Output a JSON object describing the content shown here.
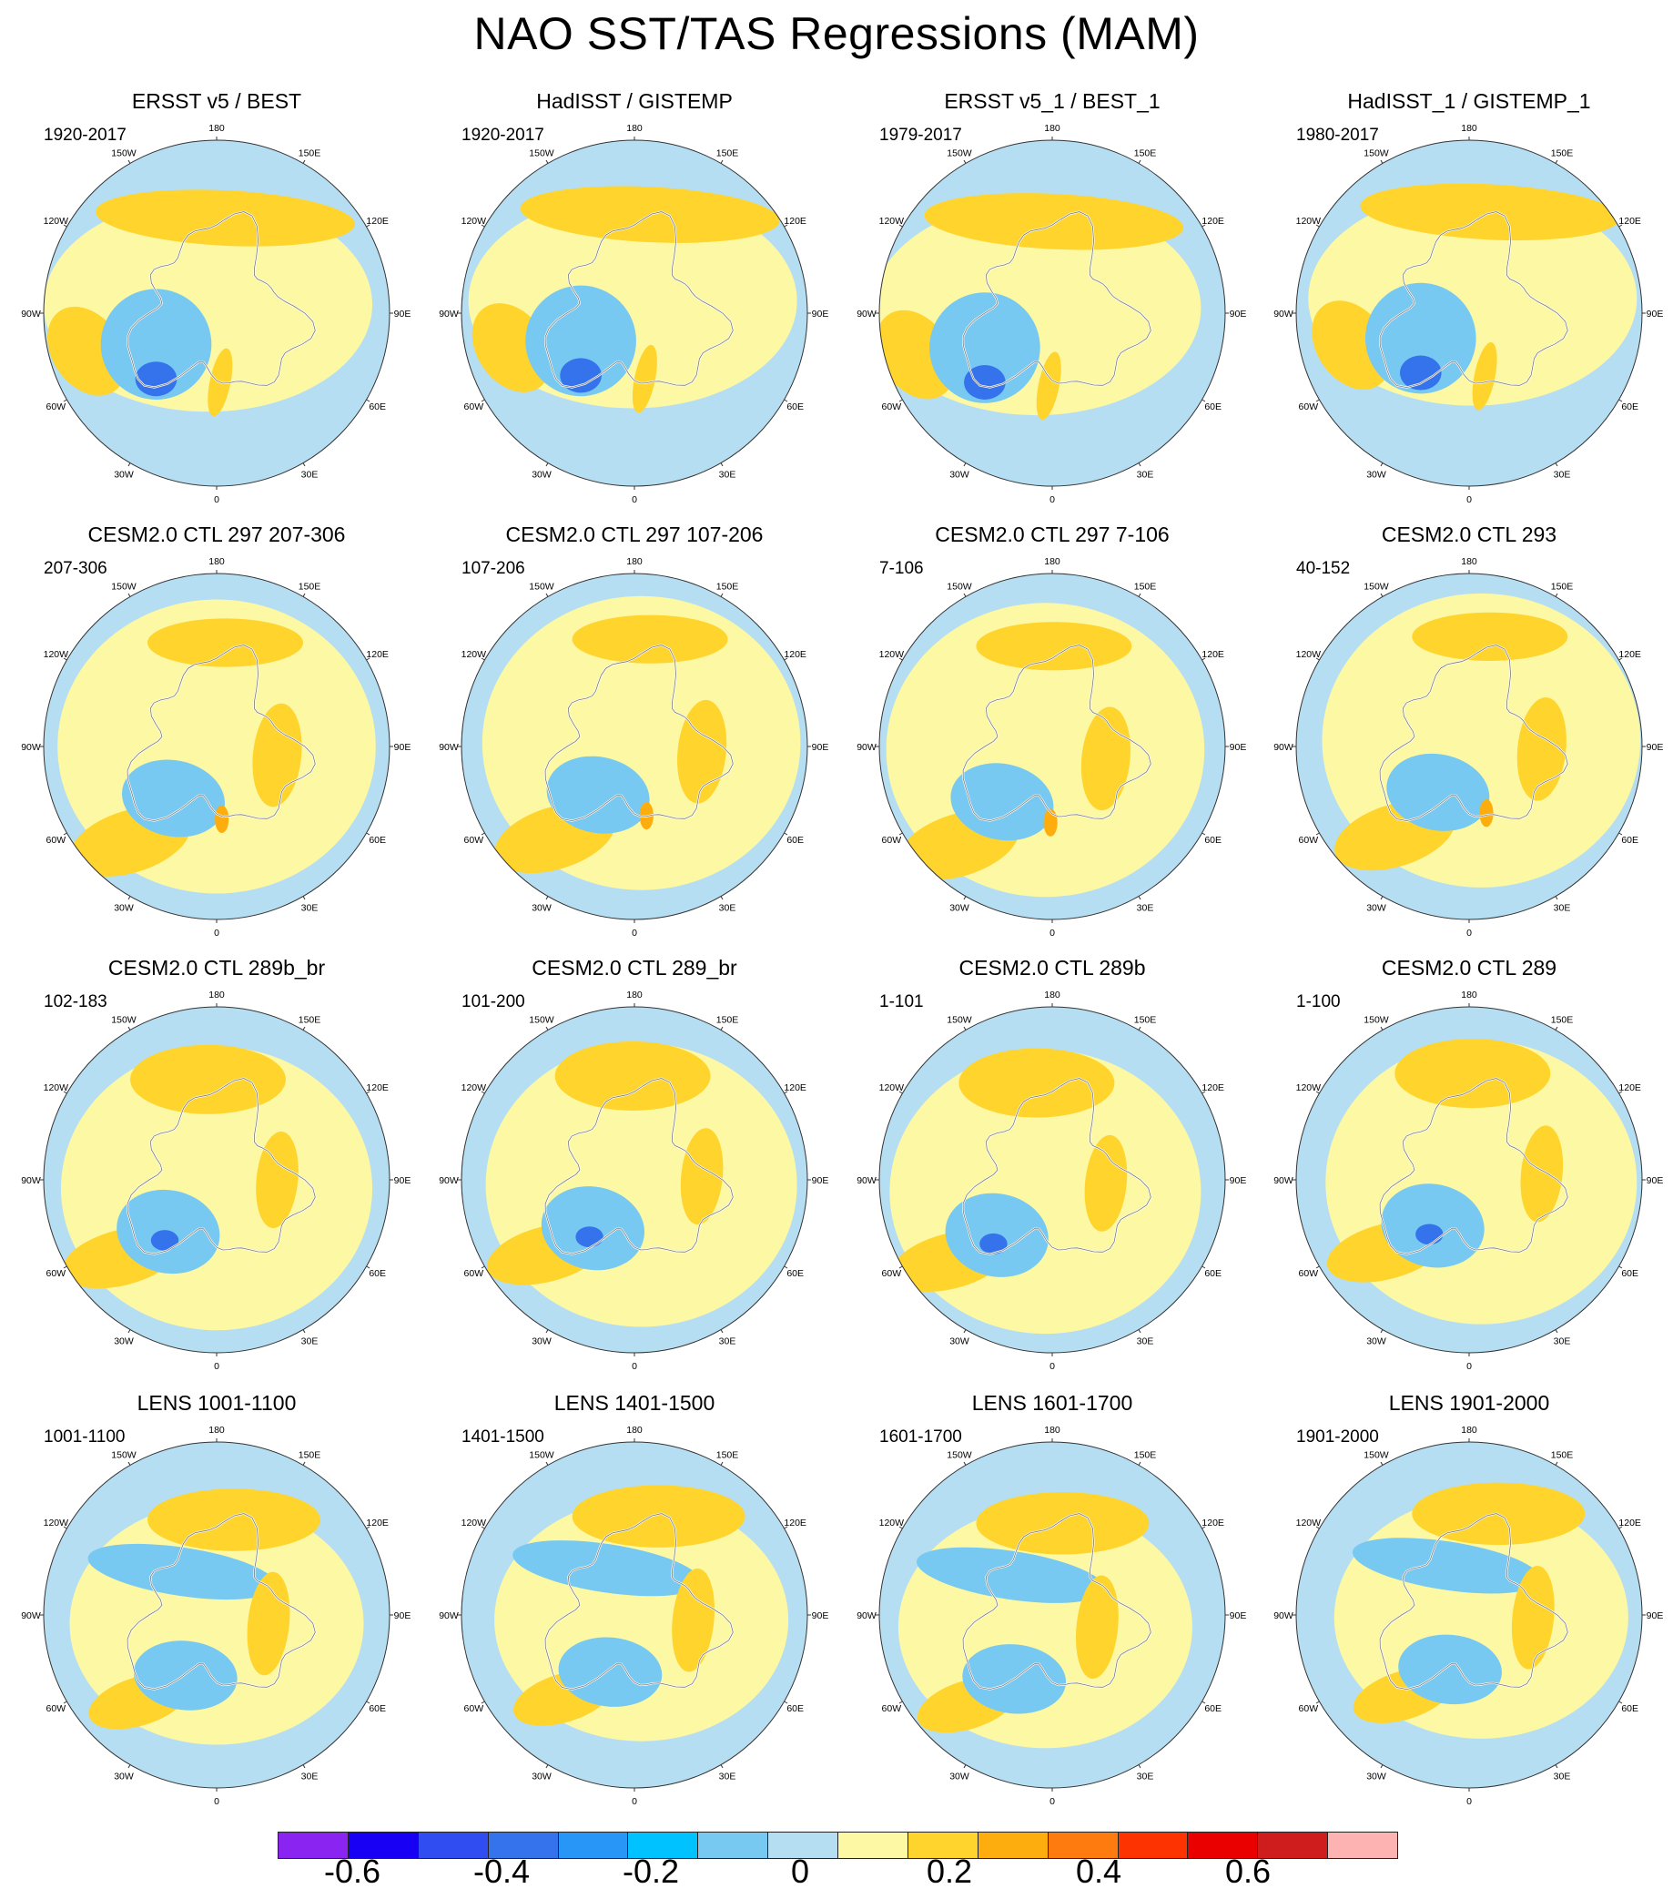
{
  "title": "NAO SST/TAS Regressions (MAM)",
  "panels": [
    {
      "title": "ERSST v5 / BEST",
      "years": "1920-2017",
      "pattern": "obs_a"
    },
    {
      "title": "HadISST / GISTEMP",
      "years": "1920-2017",
      "pattern": "obs_b"
    },
    {
      "title": "ERSST v5_1 / BEST_1",
      "years": "1979-2017",
      "pattern": "obs_c"
    },
    {
      "title": "HadISST_1 / GISTEMP_1",
      "years": "1980-2017",
      "pattern": "obs_d"
    },
    {
      "title": "CESM2.0 CTL 297 207-306",
      "years": "207-306",
      "pattern": "ctl_a"
    },
    {
      "title": "CESM2.0 CTL 297 107-206",
      "years": "107-206",
      "pattern": "ctl_b"
    },
    {
      "title": "CESM2.0 CTL 297 7-106",
      "years": "7-106",
      "pattern": "ctl_c"
    },
    {
      "title": "CESM2.0 CTL 293",
      "years": "40-152",
      "pattern": "ctl_d"
    },
    {
      "title": "CESM2.0 CTL 289b_br",
      "years": "102-183",
      "pattern": "br_a"
    },
    {
      "title": "CESM2.0 CTL 289_br",
      "years": "101-200",
      "pattern": "br_b"
    },
    {
      "title": "CESM2.0 CTL 289b",
      "years": "1-101",
      "pattern": "br_c"
    },
    {
      "title": "CESM2.0 CTL 289",
      "years": "1-100",
      "pattern": "br_d"
    },
    {
      "title": "LENS 1001-1100",
      "years": "1001-1100",
      "pattern": "lens_a"
    },
    {
      "title": "LENS 1401-1500",
      "years": "1401-1500",
      "pattern": "lens_b"
    },
    {
      "title": "LENS 1601-1700",
      "years": "1601-1700",
      "pattern": "lens_c"
    },
    {
      "title": "LENS 1901-2000",
      "years": "1901-2000",
      "pattern": "lens_d"
    }
  ],
  "longitude_labels": [
    "180",
    "150E",
    "120E",
    "90E",
    "60E",
    "30E",
    "0",
    "30W",
    "60W",
    "90W",
    "120W",
    "150W"
  ],
  "colorbar": {
    "colors": [
      "#8a24f0",
      "#1800f5",
      "#2f4df0",
      "#3573ec",
      "#2896f6",
      "#00c2ff",
      "#77c9f1",
      "#b6def3",
      "#fdf8a3",
      "#fed42d",
      "#fdad0e",
      "#fe7b10",
      "#fd3302",
      "#eb0000",
      "#cf1d1d",
      "#feb3b3"
    ],
    "labels": [
      "-0.6",
      "-0.4",
      "-0.2",
      "0",
      "0.2",
      "0.4",
      "0.6"
    ],
    "label_values": [
      -0.6,
      -0.4,
      -0.2,
      0,
      0.2,
      0.4,
      0.6
    ],
    "min": -0.7,
    "max": 0.8,
    "step": 0.1
  },
  "colors": {
    "background_light_blue": "#b6def3",
    "yellow": "#fdf8a3",
    "orange": "#fed42d",
    "dark_orange": "#fdad0e",
    "blue": "#77c9f1",
    "deep_blue": "#3573ec",
    "coast": "#ffffff",
    "outline": "#333333"
  }
}
